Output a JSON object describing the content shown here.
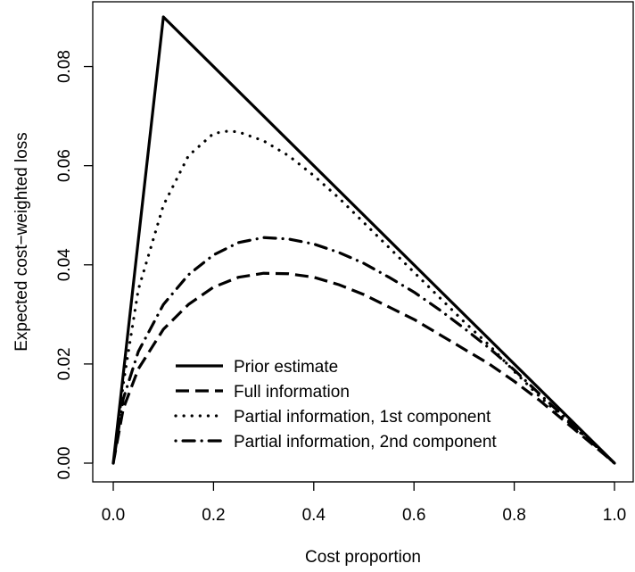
{
  "chart_data": {
    "type": "line",
    "xlabel": "Cost proportion",
    "ylabel": "Expected cost−weighted loss",
    "xlim": [
      0,
      1
    ],
    "ylim": [
      0,
      0.09
    ],
    "xticks": [
      0.0,
      0.2,
      0.4,
      0.6,
      0.8,
      1.0
    ],
    "xtick_labels": [
      "0.0",
      "0.2",
      "0.4",
      "0.6",
      "0.8",
      "1.0"
    ],
    "yticks": [
      0.0,
      0.02,
      0.04,
      0.06,
      0.08
    ],
    "ytick_labels": [
      "0.00",
      "0.02",
      "0.04",
      "0.06",
      "0.08"
    ],
    "grid": false,
    "legend_position": "bottom-center",
    "series": [
      {
        "name": "Prior estimate",
        "style": "solid",
        "points": [
          [
            0.0,
            0.0
          ],
          [
            0.1,
            0.09
          ],
          [
            1.0,
            0.0
          ]
        ]
      },
      {
        "name": "Full information",
        "style": "dashed",
        "points": [
          [
            0.0,
            0.0
          ],
          [
            0.02,
            0.011
          ],
          [
            0.05,
            0.019
          ],
          [
            0.1,
            0.027
          ],
          [
            0.15,
            0.032
          ],
          [
            0.2,
            0.0355
          ],
          [
            0.25,
            0.0375
          ],
          [
            0.3,
            0.0383
          ],
          [
            0.35,
            0.0382
          ],
          [
            0.4,
            0.0375
          ],
          [
            0.45,
            0.036
          ],
          [
            0.5,
            0.034
          ],
          [
            0.55,
            0.0315
          ],
          [
            0.6,
            0.029
          ],
          [
            0.65,
            0.026
          ],
          [
            0.7,
            0.023
          ],
          [
            0.75,
            0.02
          ],
          [
            0.8,
            0.0165
          ],
          [
            0.85,
            0.0127
          ],
          [
            0.9,
            0.0085
          ],
          [
            0.95,
            0.0043
          ],
          [
            1.0,
            0.0
          ]
        ]
      },
      {
        "name": "Partial information, 1st component",
        "style": "dotted",
        "points": [
          [
            0.0,
            0.0
          ],
          [
            0.02,
            0.016
          ],
          [
            0.05,
            0.035
          ],
          [
            0.1,
            0.052
          ],
          [
            0.15,
            0.062
          ],
          [
            0.2,
            0.0665
          ],
          [
            0.23,
            0.067
          ],
          [
            0.25,
            0.0668
          ],
          [
            0.3,
            0.065
          ],
          [
            0.35,
            0.062
          ],
          [
            0.4,
            0.058
          ],
          [
            0.45,
            0.0535
          ],
          [
            0.5,
            0.0485
          ],
          [
            0.55,
            0.0435
          ],
          [
            0.6,
            0.0385
          ],
          [
            0.65,
            0.0335
          ],
          [
            0.7,
            0.0285
          ],
          [
            0.75,
            0.0238
          ],
          [
            0.8,
            0.0185
          ],
          [
            0.85,
            0.0135
          ],
          [
            0.9,
            0.009
          ],
          [
            0.95,
            0.0045
          ],
          [
            1.0,
            0.0
          ]
        ]
      },
      {
        "name": "Partial information, 2nd component",
        "style": "dotdash",
        "points": [
          [
            0.0,
            0.0
          ],
          [
            0.02,
            0.013
          ],
          [
            0.05,
            0.0225
          ],
          [
            0.1,
            0.032
          ],
          [
            0.15,
            0.038
          ],
          [
            0.2,
            0.042
          ],
          [
            0.25,
            0.0445
          ],
          [
            0.3,
            0.0455
          ],
          [
            0.35,
            0.0452
          ],
          [
            0.4,
            0.0442
          ],
          [
            0.45,
            0.0425
          ],
          [
            0.5,
            0.0403
          ],
          [
            0.55,
            0.0375
          ],
          [
            0.6,
            0.0345
          ],
          [
            0.65,
            0.031
          ],
          [
            0.7,
            0.0272
          ],
          [
            0.75,
            0.0232
          ],
          [
            0.8,
            0.0188
          ],
          [
            0.85,
            0.014
          ],
          [
            0.9,
            0.0093
          ],
          [
            0.95,
            0.0046
          ],
          [
            1.0,
            0.0
          ]
        ]
      }
    ]
  }
}
